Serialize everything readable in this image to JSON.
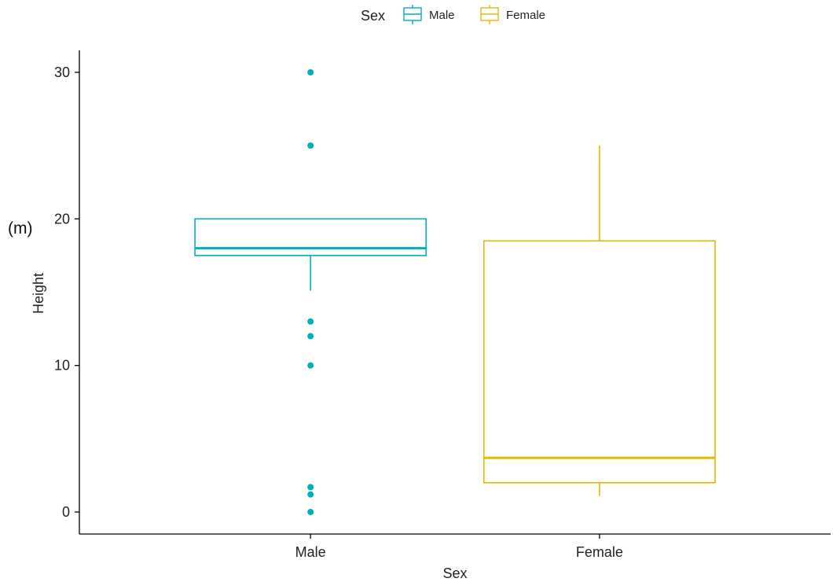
{
  "chart_data": {
    "type": "boxplot",
    "xlabel": "Sex",
    "ylabel": "Height",
    "ylabel_annotation": "(m)",
    "categories": [
      "Male",
      "Female"
    ],
    "ylim": [
      -1.5,
      31.5
    ],
    "yticks": [
      0,
      10,
      20,
      30
    ],
    "grid": false,
    "legend": {
      "title": "Sex",
      "position": "top",
      "entries": [
        "Male",
        "Female"
      ]
    },
    "series": [
      {
        "name": "Male",
        "color": "#00AFBB",
        "min": 15.1,
        "q1": 17.5,
        "median": 18.0,
        "q3": 20.0,
        "max": 20.0,
        "outliers": [
          30,
          25,
          13,
          12,
          10,
          1.7,
          1.2,
          0
        ]
      },
      {
        "name": "Female",
        "color": "#E7B800",
        "min": 1.1,
        "q1": 2.0,
        "median": 3.7,
        "q3": 18.5,
        "max": 25.0,
        "outliers": []
      }
    ]
  }
}
